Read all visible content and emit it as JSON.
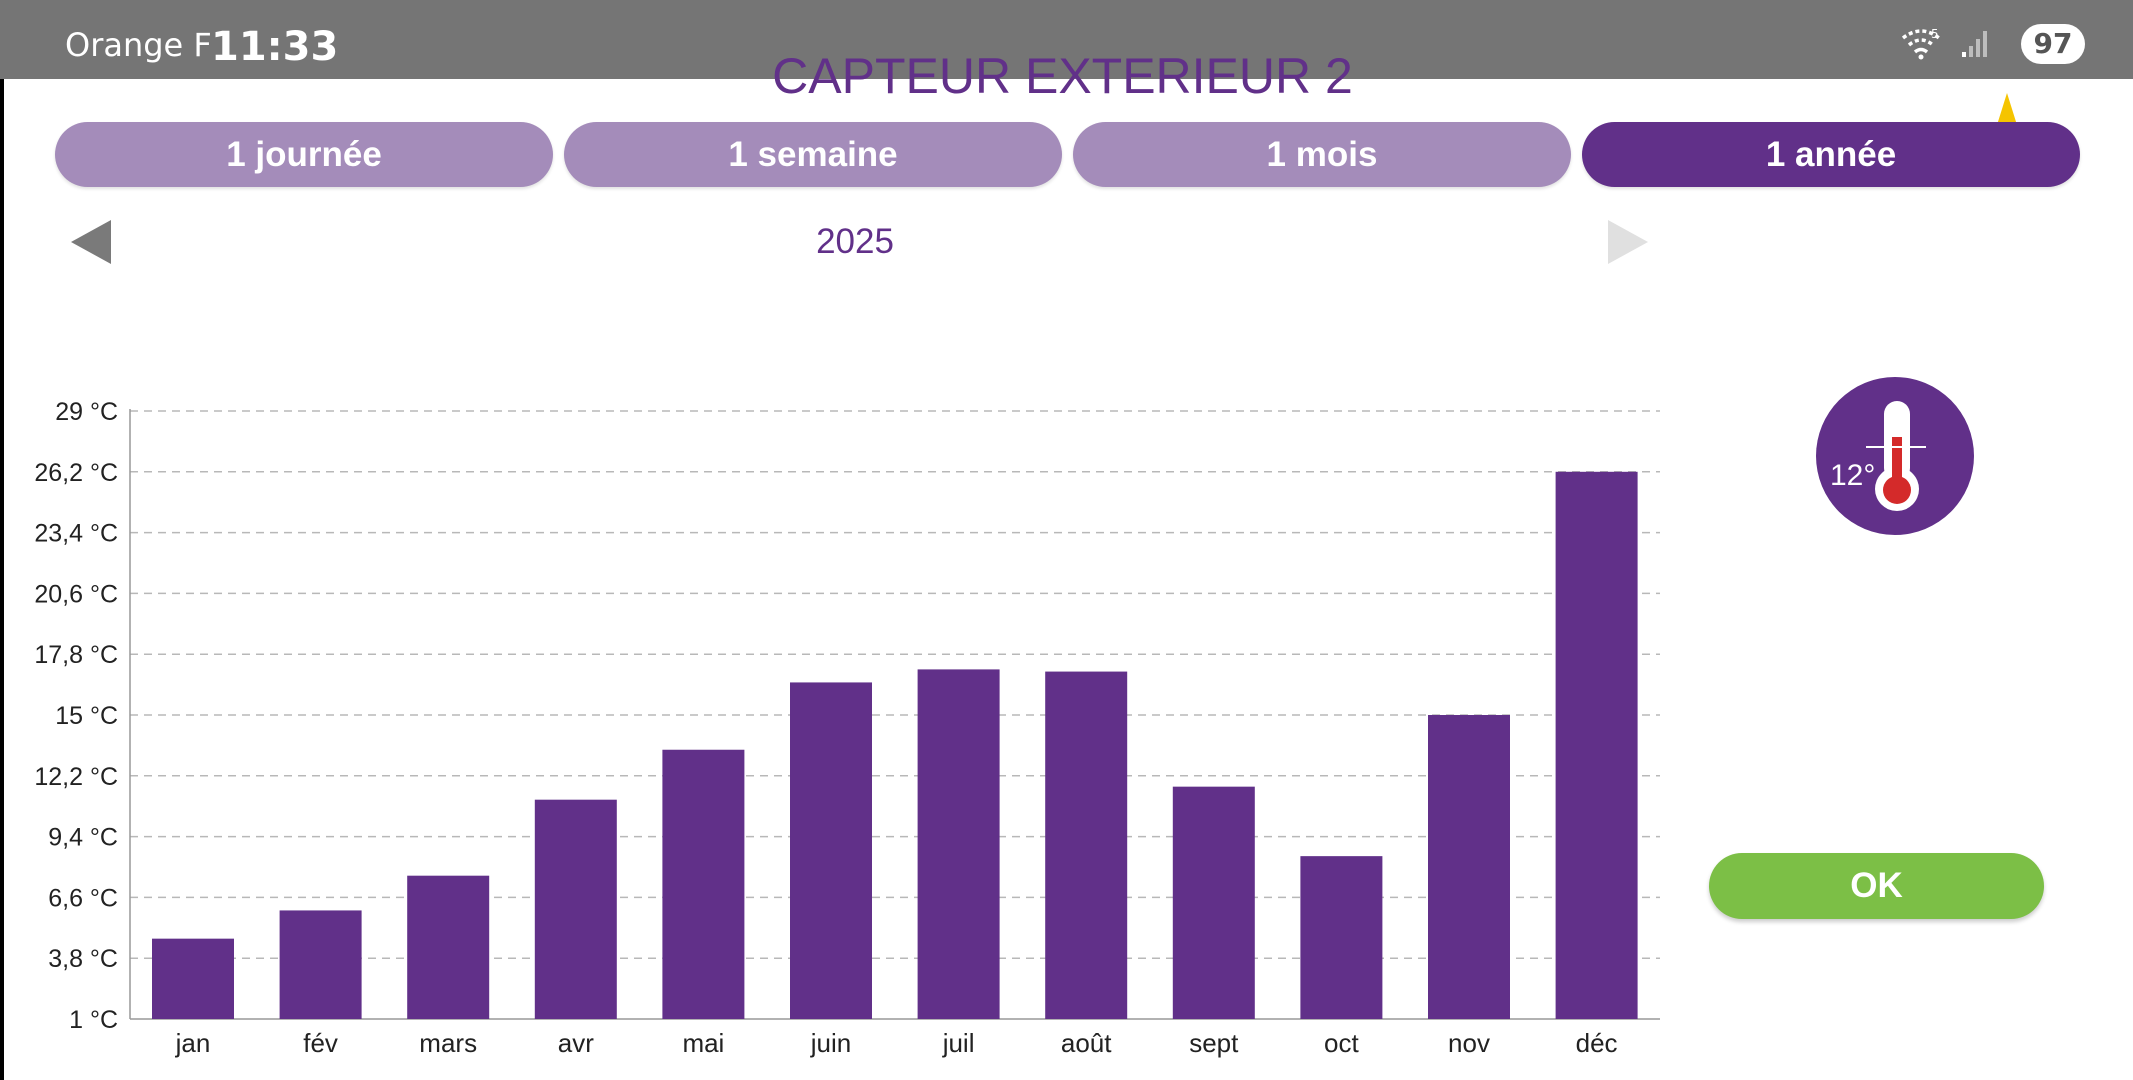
{
  "status_bar": {
    "carrier": "Orange F",
    "time": "11:33",
    "battery": "97",
    "wifi_label": "5"
  },
  "header": {
    "title": "CAPTEUR EXTERIEUR 2"
  },
  "tabs": [
    {
      "label": "1 journée",
      "active": false
    },
    {
      "label": "1 semaine",
      "active": false
    },
    {
      "label": "1 mois",
      "active": false
    },
    {
      "label": "1 année",
      "active": true
    }
  ],
  "navigation": {
    "period": "2025"
  },
  "sensor": {
    "reading": "12°"
  },
  "buttons": {
    "ok": "OK"
  },
  "colors": {
    "primary": "#613089",
    "tab_inactive": "#a48cba",
    "ok_green": "#7cbf46",
    "star": "#f5c400",
    "status_bar": "#757575"
  },
  "chart_data": {
    "type": "bar",
    "title": "",
    "xlabel": "",
    "ylabel": "",
    "ylim": [
      1,
      29
    ],
    "y_ticks": [
      {
        "value": 1,
        "label": "1 °C"
      },
      {
        "value": 3.8,
        "label": "3,8 °C"
      },
      {
        "value": 6.6,
        "label": "6,6 °C"
      },
      {
        "value": 9.4,
        "label": "9,4 °C"
      },
      {
        "value": 12.2,
        "label": "12,2 °C"
      },
      {
        "value": 15,
        "label": "15 °C"
      },
      {
        "value": 17.8,
        "label": "17,8 °C"
      },
      {
        "value": 20.6,
        "label": "20,6 °C"
      },
      {
        "value": 23.4,
        "label": "23,4 °C"
      },
      {
        "value": 26.2,
        "label": "26,2 °C"
      },
      {
        "value": 29,
        "label": "29 °C"
      }
    ],
    "categories": [
      "jan",
      "fév",
      "mars",
      "avr",
      "mai",
      "juin",
      "juil",
      "août",
      "sept",
      "oct",
      "nov",
      "déc"
    ],
    "values": [
      4.7,
      6.0,
      7.6,
      11.1,
      13.4,
      16.5,
      17.1,
      17.0,
      11.7,
      8.5,
      15.0,
      26.2
    ],
    "grid": true
  }
}
